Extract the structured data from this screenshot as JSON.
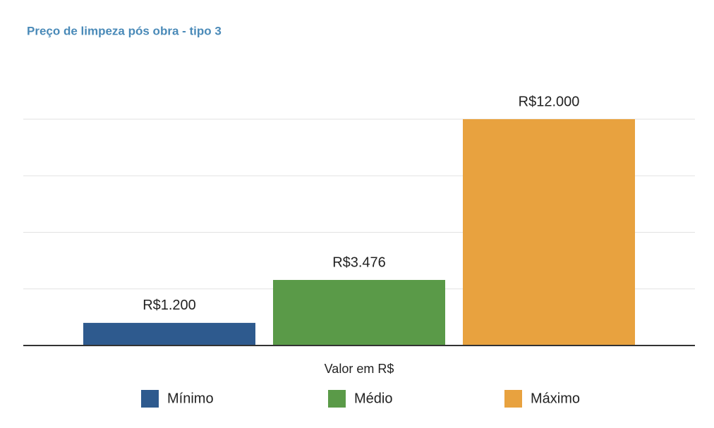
{
  "chart_data": {
    "type": "bar",
    "title": "Preço de limpeza pós obra - tipo 3",
    "categories": [
      "Valor em R$"
    ],
    "series": [
      {
        "name": "Mínimo",
        "color": "#2e5a8e",
        "values": [
          1200
        ],
        "value_labels": [
          "R$1.200"
        ]
      },
      {
        "name": "Médio",
        "color": "#5a9a48",
        "values": [
          3476
        ],
        "value_labels": [
          "R$3.476"
        ]
      },
      {
        "name": "Máximo",
        "color": "#e8a23f",
        "values": [
          12000
        ],
        "value_labels": [
          "R$12.000"
        ]
      }
    ],
    "ylim": [
      0,
      12000
    ],
    "yticks": [
      0,
      3000,
      6000,
      9000,
      12000
    ],
    "grid": true,
    "legend": "bottom"
  }
}
